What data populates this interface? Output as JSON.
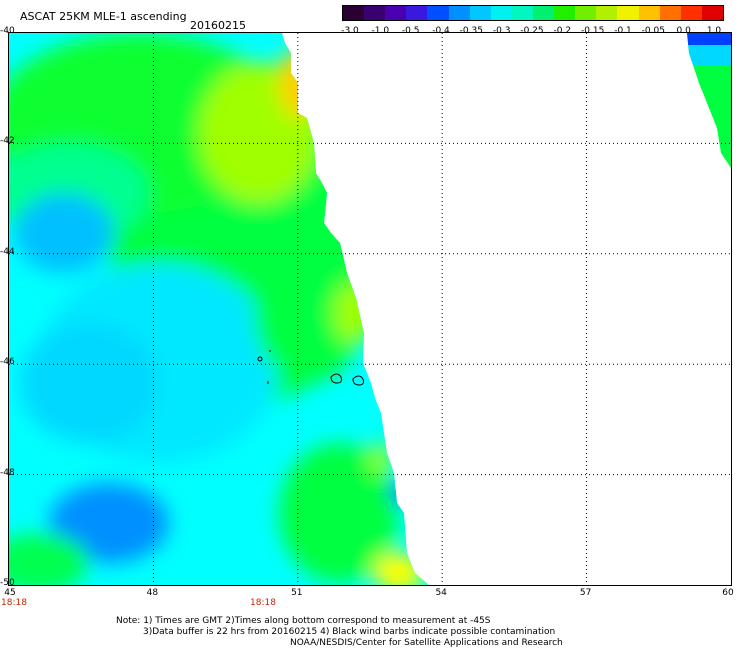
{
  "header": {
    "title": "ASCAT 25KM MLE-1 ascending",
    "date": "20160215"
  },
  "colorbar": {
    "colors": [
      "#2a0033",
      "#3b0070",
      "#4b00b0",
      "#3a18e0",
      "#0050ff",
      "#0090ff",
      "#00c8ff",
      "#00f0f0",
      "#00f8c0",
      "#00f070",
      "#20f000",
      "#70f000",
      "#b0f000",
      "#f0f000",
      "#ffc000",
      "#ff7000",
      "#ff3000",
      "#e00000"
    ],
    "labels": [
      "-3.0",
      "-1.0",
      "-0.5",
      "-0.4",
      "-0.35",
      "-0.3",
      "-0.25",
      "-0.2",
      "-0.15",
      "-0.1",
      "-0.05",
      "0.0",
      "1.0"
    ]
  },
  "map": {
    "y_axis_labels": [
      "-40",
      "-42",
      "-44",
      "-46",
      "-48",
      "-50"
    ],
    "x_axis_labels": [
      "45",
      "48",
      "51",
      "54",
      "57",
      "60"
    ],
    "time_labels": [
      "18:18",
      "18:18"
    ],
    "palette": {
      "cyan": "#00ffff",
      "light_blue": "#00e0ff",
      "blue": "#00b0ff",
      "green": "#00ff40",
      "yellow_green": "#a0ff00",
      "yellow": "#ffff00",
      "orange": "#ffc000",
      "dark_blue": "#0040ff"
    }
  },
  "notes": {
    "line1": "Note: 1) Times are GMT 2)Times along bottom correspond to measurement at -45S",
    "line2": "3)Data buffer is 22 hrs from 20160215 4) Black wind barbs indicate possible contamination",
    "line3": "NOAA/NESDIS/Center for Satellite Applications and Research"
  }
}
